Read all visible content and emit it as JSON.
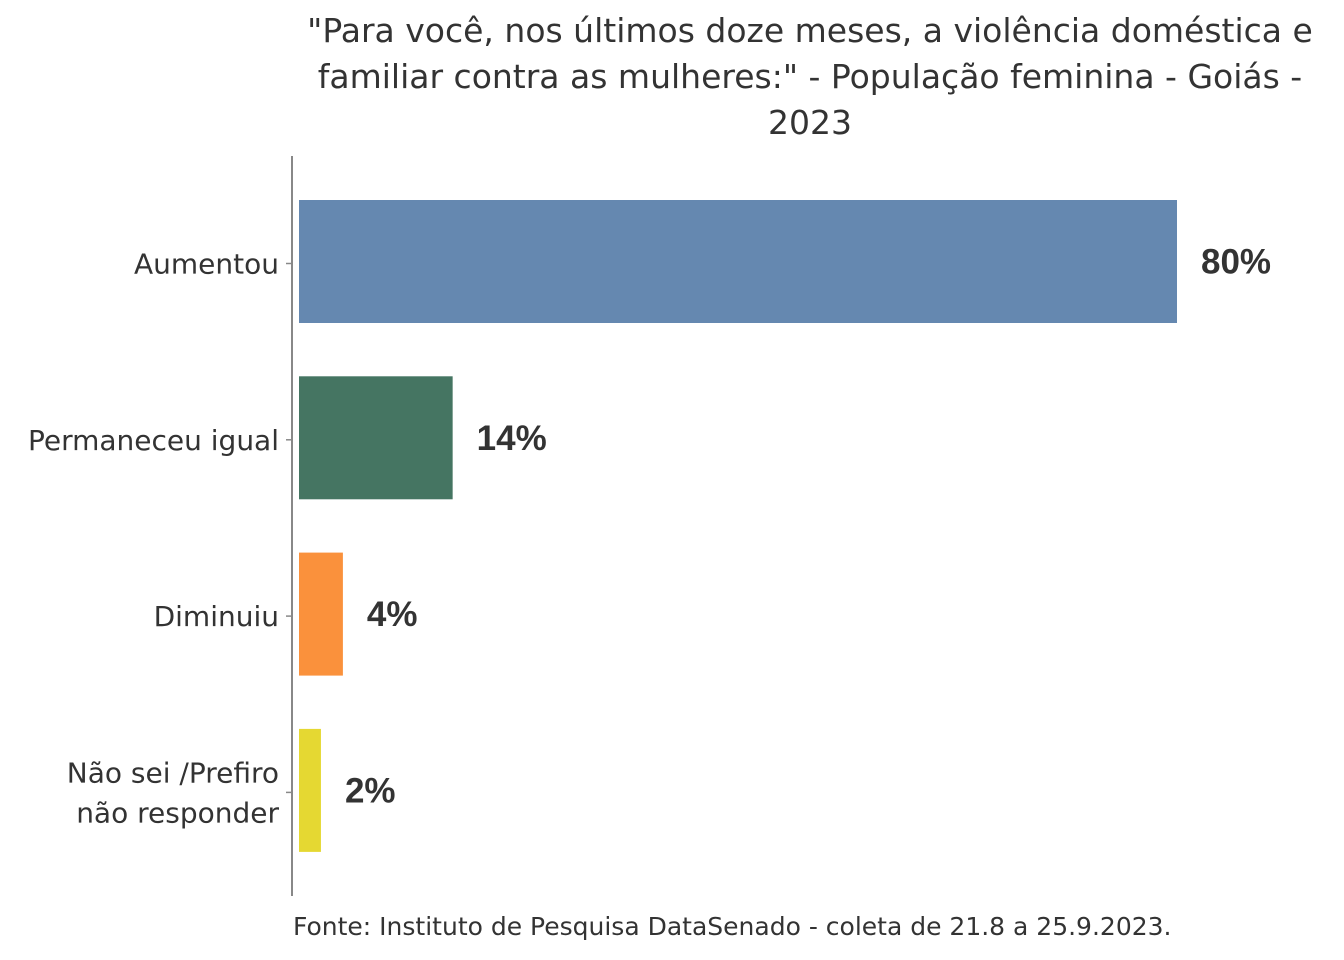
{
  "chart_data": {
    "type": "bar",
    "orientation": "horizontal",
    "title": "\"Para você, nos últimos doze meses, a violência doméstica e familiar contra as mulheres:\" - População feminina - Goiás - 2023",
    "title_lines": [
      "\"Para você, nos últimos doze meses, a violência doméstica e",
      "familiar contra as mulheres:\" - População feminina - Goiás -",
      "2023"
    ],
    "categories": [
      "Aumentou",
      "Permaneceu igual",
      "Diminuiu",
      "Não sei /Prefiro não responder"
    ],
    "category_lines": [
      [
        "Aumentou"
      ],
      [
        "Permaneceu igual"
      ],
      [
        "Diminuiu"
      ],
      [
        "Não sei /Prefiro",
        "não responder"
      ]
    ],
    "values": [
      80,
      14,
      4,
      2
    ],
    "data_labels": [
      "80%",
      "14%",
      "4%",
      "2%"
    ],
    "colors": [
      "#6588b0",
      "#457562",
      "#fa913c",
      "#e5d832"
    ],
    "xlabel": "",
    "ylabel": "",
    "xlim": [
      0,
      80
    ],
    "grid": false,
    "caption": "Fonte: Instituto de Pesquisa DataSenado - coleta de 21.8 a 25.9.2023."
  }
}
